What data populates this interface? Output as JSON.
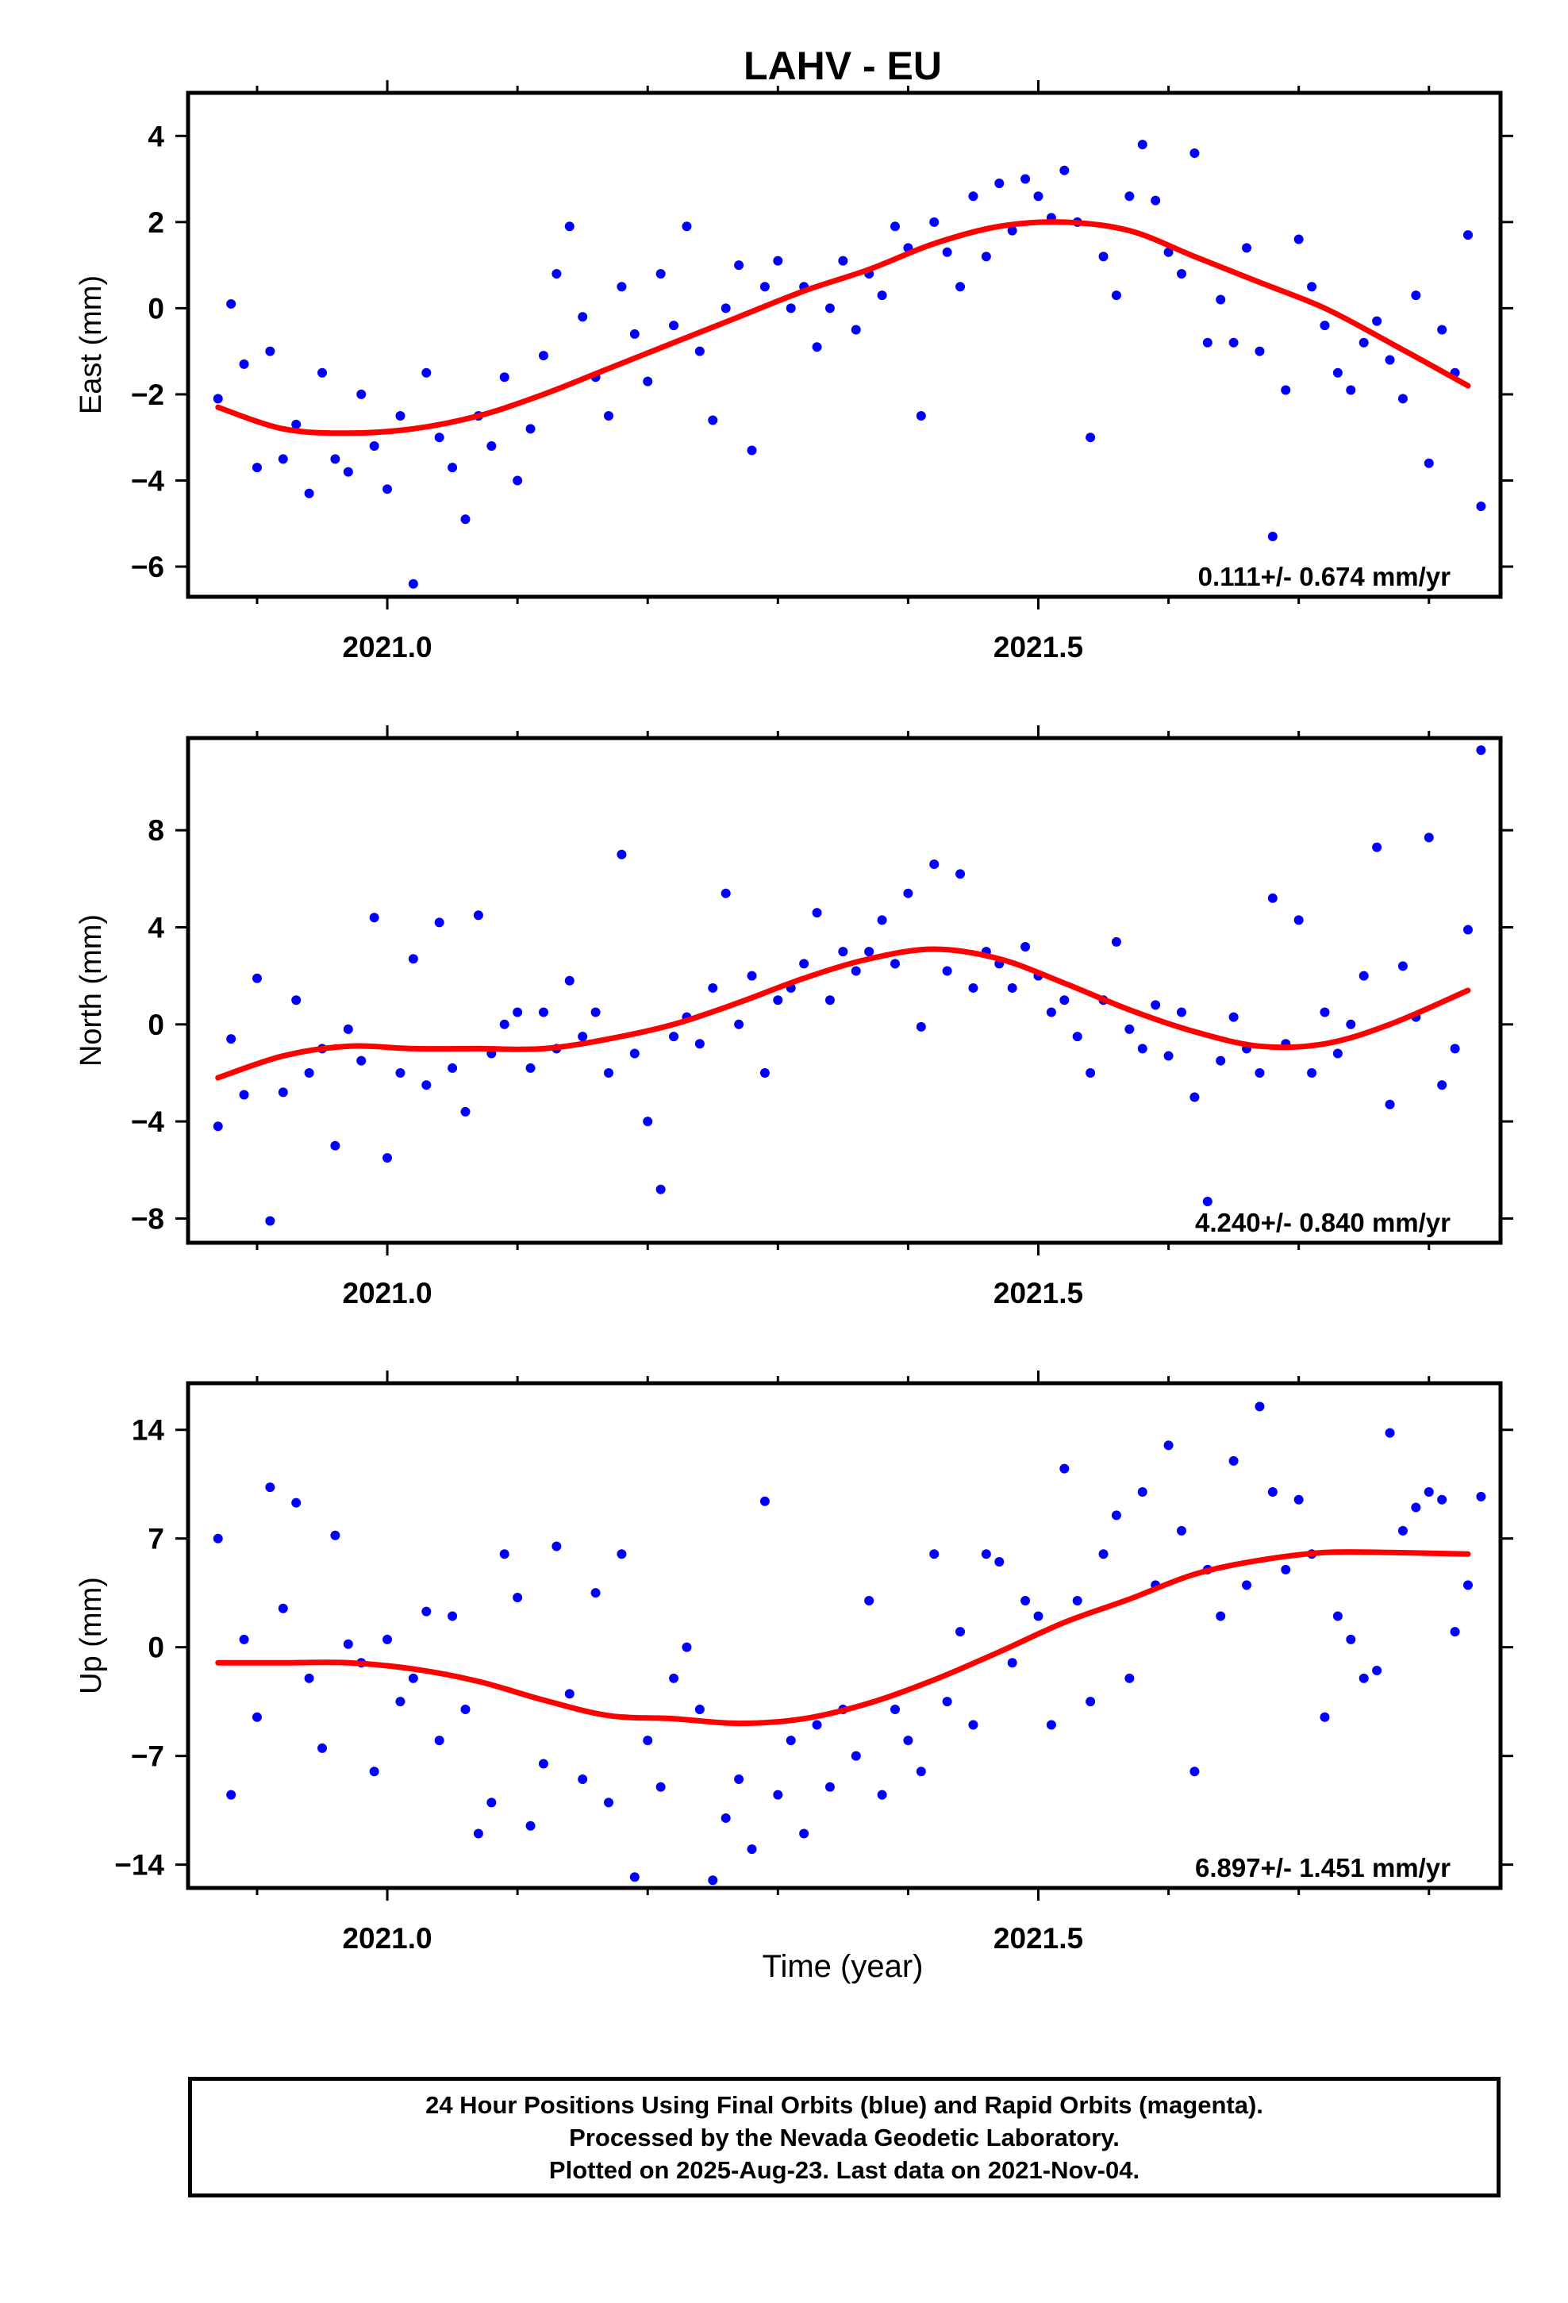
{
  "figure": {
    "title": "LAHV - EU",
    "xlabel": "Time (year)"
  },
  "footer": {
    "line1": "24 Hour Positions Using Final Orbits (blue) and Rapid Orbits (magenta).",
    "line2": "Processed by the Nevada Geodetic Laboratory.",
    "line3": "Plotted on 2025-Aug-23. Last data on 2021-Nov-04."
  },
  "colors": {
    "final_orbits": "#0000ff",
    "fit_curve": "#ff0000",
    "frame": "#000000"
  },
  "chart_data": [
    {
      "type": "scatter",
      "ylabel": "East (mm)",
      "rate": "0.111+/- 0.674 mm/yr",
      "xlim": [
        2020.847,
        2021.855
      ],
      "ylim": [
        -6.7,
        5.0
      ],
      "x_ticks": [
        2021.0,
        2021.5
      ],
      "x_tick_labels": [
        "2021.0",
        "2021.5"
      ],
      "y_ticks": [
        -6,
        -4,
        -2,
        0,
        2,
        4
      ],
      "y_tick_labels": [
        "−6",
        "−4",
        "−2",
        "0",
        "2",
        "4"
      ],
      "fit": {
        "x": [
          2020.87,
          2020.92,
          2020.97,
          2021.02,
          2021.07,
          2021.12,
          2021.17,
          2021.22,
          2021.27,
          2021.32,
          2021.37,
          2021.42,
          2021.47,
          2021.52,
          2021.57,
          2021.62,
          2021.67,
          2021.72,
          2021.77,
          2021.83
        ],
        "y": [
          -2.3,
          -2.8,
          -2.9,
          -2.8,
          -2.5,
          -2.0,
          -1.4,
          -0.8,
          -0.2,
          0.4,
          0.9,
          1.5,
          1.9,
          2.0,
          1.8,
          1.2,
          0.6,
          0.0,
          -0.8,
          -1.8
        ]
      },
      "x": [
        2020.87,
        2020.88,
        2020.89,
        2020.9,
        2020.91,
        2020.92,
        2020.93,
        2020.94,
        2020.95,
        2020.96,
        2020.97,
        2020.98,
        2020.99,
        2021.0,
        2021.01,
        2021.02,
        2021.03,
        2021.04,
        2021.05,
        2021.06,
        2021.07,
        2021.08,
        2021.09,
        2021.1,
        2021.11,
        2021.12,
        2021.13,
        2021.14,
        2021.15,
        2021.16,
        2021.17,
        2021.18,
        2021.19,
        2021.2,
        2021.21,
        2021.22,
        2021.23,
        2021.24,
        2021.25,
        2021.26,
        2021.27,
        2021.28,
        2021.29,
        2021.3,
        2021.31,
        2021.32,
        2021.33,
        2021.34,
        2021.35,
        2021.36,
        2021.37,
        2021.38,
        2021.39,
        2021.4,
        2021.41,
        2021.42,
        2021.43,
        2021.44,
        2021.45,
        2021.46,
        2021.47,
        2021.48,
        2021.49,
        2021.5,
        2021.51,
        2021.52,
        2021.53,
        2021.54,
        2021.55,
        2021.56,
        2021.57,
        2021.58,
        2021.59,
        2021.6,
        2021.61,
        2021.62,
        2021.63,
        2021.64,
        2021.65,
        2021.66,
        2021.67,
        2021.68,
        2021.69,
        2021.7,
        2021.71,
        2021.72,
        2021.73,
        2021.74,
        2021.75,
        2021.76,
        2021.77,
        2021.78,
        2021.79,
        2021.8,
        2021.81,
        2021.82,
        2021.83,
        2021.84
      ],
      "y": [
        -2.1,
        0.1,
        -1.3,
        -3.7,
        -1.0,
        -3.5,
        -2.7,
        -4.3,
        -1.5,
        -3.5,
        -3.8,
        -2.0,
        -3.2,
        -4.2,
        -2.5,
        -6.4,
        -1.5,
        -3.0,
        -3.7,
        -4.9,
        -2.5,
        -3.2,
        -1.6,
        -4.0,
        -2.8,
        -1.1,
        0.8,
        1.9,
        -0.2,
        -1.6,
        -2.5,
        0.5,
        -0.6,
        -1.7,
        0.8,
        -0.4,
        1.9,
        -1.0,
        -2.6,
        0.0,
        1.0,
        -3.3,
        0.5,
        1.1,
        0.0,
        0.5,
        -0.9,
        0.0,
        1.1,
        -0.5,
        0.8,
        0.3,
        1.9,
        1.4,
        -2.5,
        2.0,
        1.3,
        0.5,
        2.6,
        1.2,
        2.9,
        1.8,
        3.0,
        2.6,
        2.1,
        3.2,
        2.0,
        -3.0,
        1.2,
        0.3,
        2.6,
        3.8,
        2.5,
        1.3,
        0.8,
        3.6,
        -0.8,
        0.2,
        -0.8,
        1.4,
        -1.0,
        -5.3,
        -1.9,
        1.6,
        0.5,
        -0.4,
        -1.5,
        -1.9,
        -0.8,
        -0.3,
        -1.2,
        -2.1,
        0.3,
        -3.6,
        -0.5,
        -1.5,
        1.7,
        -4.6
      ]
    },
    {
      "type": "scatter",
      "ylabel": "North (mm)",
      "rate": "4.240+/- 0.840 mm/yr",
      "xlim": [
        2020.847,
        2021.855
      ],
      "ylim": [
        -9.0,
        11.8
      ],
      "x_ticks": [
        2021.0,
        2021.5
      ],
      "x_tick_labels": [
        "2021.0",
        "2021.5"
      ],
      "y_ticks": [
        -8,
        -4,
        0,
        4,
        8
      ],
      "y_tick_labels": [
        "−8",
        "−4",
        "0",
        "4",
        "8"
      ],
      "fit": {
        "x": [
          2020.87,
          2020.92,
          2020.97,
          2021.02,
          2021.07,
          2021.12,
          2021.17,
          2021.22,
          2021.27,
          2021.32,
          2021.37,
          2021.42,
          2021.47,
          2021.52,
          2021.57,
          2021.62,
          2021.67,
          2021.72,
          2021.77,
          2021.83
        ],
        "y": [
          -2.2,
          -1.3,
          -0.9,
          -1.0,
          -1.0,
          -1.0,
          -0.6,
          0.0,
          0.9,
          1.9,
          2.7,
          3.1,
          2.7,
          1.7,
          0.6,
          -0.3,
          -0.9,
          -0.8,
          0.0,
          1.4
        ]
      },
      "x": [
        2020.87,
        2020.88,
        2020.89,
        2020.9,
        2020.91,
        2020.92,
        2020.93,
        2020.94,
        2020.95,
        2020.96,
        2020.97,
        2020.98,
        2020.99,
        2021.0,
        2021.01,
        2021.02,
        2021.03,
        2021.04,
        2021.05,
        2021.06,
        2021.07,
        2021.08,
        2021.09,
        2021.1,
        2021.11,
        2021.12,
        2021.13,
        2021.14,
        2021.15,
        2021.16,
        2021.17,
        2021.18,
        2021.19,
        2021.2,
        2021.21,
        2021.22,
        2021.23,
        2021.24,
        2021.25,
        2021.26,
        2021.27,
        2021.28,
        2021.29,
        2021.3,
        2021.31,
        2021.32,
        2021.33,
        2021.34,
        2021.35,
        2021.36,
        2021.37,
        2021.38,
        2021.39,
        2021.4,
        2021.41,
        2021.42,
        2021.43,
        2021.44,
        2021.45,
        2021.46,
        2021.47,
        2021.48,
        2021.49,
        2021.5,
        2021.51,
        2021.52,
        2021.53,
        2021.54,
        2021.55,
        2021.56,
        2021.57,
        2021.58,
        2021.59,
        2021.6,
        2021.61,
        2021.62,
        2021.63,
        2021.64,
        2021.65,
        2021.66,
        2021.67,
        2021.68,
        2021.69,
        2021.7,
        2021.71,
        2021.72,
        2021.73,
        2021.74,
        2021.75,
        2021.76,
        2021.77,
        2021.78,
        2021.79,
        2021.8,
        2021.81,
        2021.82,
        2021.83,
        2021.84
      ],
      "y": [
        -4.2,
        -0.6,
        -2.9,
        1.9,
        -8.1,
        -2.8,
        1.0,
        -2.0,
        -1.0,
        -5.0,
        -0.2,
        -1.5,
        4.4,
        -5.5,
        -2.0,
        2.7,
        -2.5,
        4.2,
        -1.8,
        -3.6,
        4.5,
        -1.2,
        0.0,
        0.5,
        -1.8,
        0.5,
        -1.0,
        1.8,
        -0.5,
        0.5,
        -2.0,
        7.0,
        -1.2,
        -4.0,
        -6.8,
        -0.5,
        0.3,
        -0.8,
        1.5,
        5.4,
        0.0,
        2.0,
        -2.0,
        1.0,
        1.5,
        2.5,
        4.6,
        1.0,
        3.0,
        2.2,
        3.0,
        4.3,
        2.5,
        5.4,
        -0.1,
        6.6,
        2.2,
        6.2,
        1.5,
        3.0,
        2.5,
        1.5,
        3.2,
        2.0,
        0.5,
        1.0,
        -0.5,
        -2.0,
        1.0,
        3.4,
        -0.2,
        -1.0,
        0.8,
        -1.3,
        0.5,
        -3.0,
        -7.3,
        -1.5,
        0.3,
        -1.0,
        -2.0,
        5.2,
        -0.8,
        4.3,
        -2.0,
        0.5,
        -1.2,
        0.0,
        2.0,
        7.3,
        -3.3,
        2.4,
        0.3,
        7.7,
        -2.5,
        -1.0,
        3.9,
        11.3
      ]
    },
    {
      "type": "scatter",
      "ylabel": "Up (mm)",
      "rate": "6.897+/- 1.451 mm/yr",
      "xlim": [
        2020.847,
        2021.855
      ],
      "ylim": [
        -15.5,
        17.0
      ],
      "x_ticks": [
        2021.0,
        2021.5
      ],
      "x_tick_labels": [
        "2021.0",
        "2021.5"
      ],
      "y_ticks": [
        -14,
        -7,
        0,
        7,
        14
      ],
      "y_tick_labels": [
        "−14",
        "−7",
        "0",
        "7",
        "14"
      ],
      "fit": {
        "x": [
          2020.87,
          2020.92,
          2020.97,
          2021.02,
          2021.07,
          2021.12,
          2021.17,
          2021.22,
          2021.27,
          2021.32,
          2021.37,
          2021.42,
          2021.47,
          2021.52,
          2021.57,
          2021.62,
          2021.67,
          2021.72,
          2021.77,
          2021.83
        ],
        "y": [
          -1.0,
          -1.0,
          -1.0,
          -1.4,
          -2.2,
          -3.4,
          -4.4,
          -4.6,
          -4.9,
          -4.6,
          -3.6,
          -2.1,
          -0.3,
          1.6,
          3.1,
          4.7,
          5.6,
          6.1,
          6.1,
          6.0
        ]
      },
      "x": [
        2020.87,
        2020.88,
        2020.89,
        2020.9,
        2020.91,
        2020.92,
        2020.93,
        2020.94,
        2020.95,
        2020.96,
        2020.97,
        2020.98,
        2020.99,
        2021.0,
        2021.01,
        2021.02,
        2021.03,
        2021.04,
        2021.05,
        2021.06,
        2021.07,
        2021.08,
        2021.09,
        2021.1,
        2021.11,
        2021.12,
        2021.13,
        2021.14,
        2021.15,
        2021.16,
        2021.17,
        2021.18,
        2021.19,
        2021.2,
        2021.21,
        2021.22,
        2021.23,
        2021.24,
        2021.25,
        2021.26,
        2021.27,
        2021.28,
        2021.29,
        2021.3,
        2021.31,
        2021.32,
        2021.33,
        2021.34,
        2021.35,
        2021.36,
        2021.37,
        2021.38,
        2021.39,
        2021.4,
        2021.41,
        2021.42,
        2021.43,
        2021.44,
        2021.45,
        2021.46,
        2021.47,
        2021.48,
        2021.49,
        2021.5,
        2021.51,
        2021.52,
        2021.53,
        2021.54,
        2021.55,
        2021.56,
        2021.57,
        2021.58,
        2021.59,
        2021.6,
        2021.61,
        2021.62,
        2021.63,
        2021.64,
        2021.65,
        2021.66,
        2021.67,
        2021.68,
        2021.69,
        2021.7,
        2021.71,
        2021.72,
        2021.73,
        2021.74,
        2021.75,
        2021.76,
        2021.77,
        2021.78,
        2021.79,
        2021.8,
        2021.81,
        2021.82,
        2021.83,
        2021.84
      ],
      "y": [
        7.0,
        -9.5,
        0.5,
        -4.5,
        10.3,
        2.5,
        9.3,
        -2.0,
        -6.5,
        7.2,
        0.2,
        -1.0,
        -8.0,
        0.5,
        -3.5,
        -2.0,
        2.3,
        -6.0,
        2.0,
        -4.0,
        -12.0,
        -10.0,
        6.0,
        3.2,
        -11.5,
        -7.5,
        6.5,
        -3.0,
        -8.5,
        3.5,
        -10.0,
        6.0,
        -14.8,
        -6.0,
        -9.0,
        -2.0,
        0.0,
        -4.0,
        -15.0,
        -11.0,
        -8.5,
        -13.0,
        9.4,
        -9.5,
        -6.0,
        -12.0,
        -5.0,
        -9.0,
        -4.0,
        -7.0,
        3.0,
        -9.5,
        -4.0,
        -6.0,
        -8.0,
        6.0,
        -3.5,
        1.0,
        -5.0,
        6.0,
        5.5,
        -1.0,
        3.0,
        2.0,
        -5.0,
        11.5,
        3.0,
        -3.5,
        6.0,
        8.5,
        -2.0,
        10.0,
        4.0,
        13.0,
        7.5,
        -8.0,
        5.0,
        2.0,
        12.0,
        4.0,
        15.5,
        10.0,
        5.0,
        9.5,
        6.0,
        -4.5,
        2.0,
        0.5,
        -2.0,
        -1.5,
        13.8,
        7.5,
        9.0,
        10.0,
        9.5,
        1.0,
        4.0,
        9.7
      ]
    }
  ]
}
